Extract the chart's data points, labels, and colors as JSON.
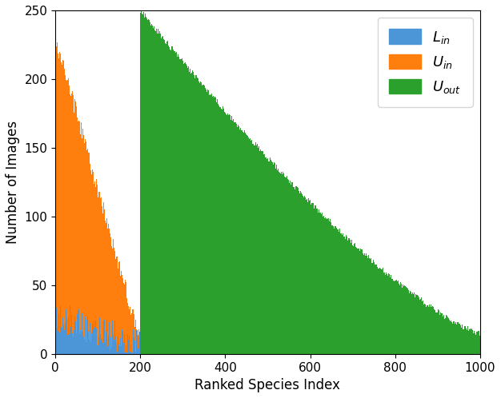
{
  "title": "",
  "xlabel": "Ranked Species Index",
  "ylabel": "Number of Images",
  "xlim": [
    0,
    1000
  ],
  "ylim": [
    0,
    250
  ],
  "yticks": [
    0,
    50,
    100,
    150,
    200,
    250
  ],
  "xticks": [
    0,
    200,
    400,
    600,
    800,
    1000
  ],
  "colors": {
    "Lin": "#4c96d7",
    "Uin": "#ff7f0e",
    "Uout": "#2ca02c"
  },
  "n_in": 200,
  "n_out": 800,
  "Lin_noise_seed": 42,
  "Uin_start": 230,
  "Uin_end": 10,
  "Uout_start": 250,
  "Uout_end": 15,
  "figsize": [
    6.26,
    4.98
  ],
  "dpi": 100
}
